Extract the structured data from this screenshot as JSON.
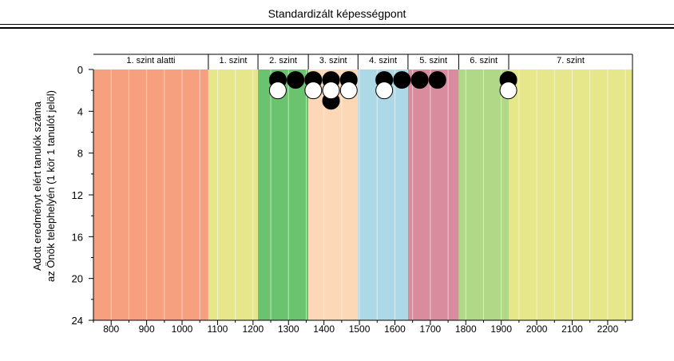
{
  "header": {
    "title": "Standardizált képességpont"
  },
  "chart_data": {
    "type": "scatter",
    "title": "",
    "xlabel": "",
    "ylabel_line1": "Adott eredményt elért tanulók száma",
    "ylabel_line2": "az Önök telephelyén (1 kör 1 tanulót jelöl)",
    "xlim": [
      750,
      2270
    ],
    "ylim": [
      0,
      24
    ],
    "y_inverted": true,
    "grid": "vertical every 50 points",
    "x_ticks": [
      800,
      900,
      1000,
      1100,
      1200,
      1300,
      1400,
      1500,
      1600,
      1700,
      1800,
      1900,
      2000,
      2100,
      2200
    ],
    "y_ticks": [
      0,
      4,
      8,
      12,
      16,
      20,
      24
    ],
    "levels": [
      {
        "label": "1. szint alatti",
        "from": 750,
        "to": 1074,
        "color": "#f6a07f"
      },
      {
        "label": "1. szint",
        "from": 1074,
        "to": 1214,
        "color": "#e6e68a"
      },
      {
        "label": "2. szint",
        "from": 1214,
        "to": 1356,
        "color": "#6cc36f"
      },
      {
        "label": "3. szint",
        "from": 1356,
        "to": 1496,
        "color": "#fcd8b6"
      },
      {
        "label": "4. szint",
        "from": 1496,
        "to": 1637,
        "color": "#add8e6"
      },
      {
        "label": "5. szint",
        "from": 1637,
        "to": 1780,
        "color": "#d88c9d"
      },
      {
        "label": "6. szint",
        "from": 1780,
        "to": 1921,
        "color": "#b0d887"
      },
      {
        "label": "7. szint",
        "from": 1921,
        "to": 2270,
        "color": "#e6e68a"
      }
    ],
    "series": [
      {
        "name": "",
        "fill": "#000000",
        "points": [
          {
            "x": 1270,
            "y": 1
          },
          {
            "x": 1320,
            "y": 1
          },
          {
            "x": 1370,
            "y": 1
          },
          {
            "x": 1420,
            "y": 1
          },
          {
            "x": 1470,
            "y": 1
          },
          {
            "x": 1570,
            "y": 1
          },
          {
            "x": 1620,
            "y": 1
          },
          {
            "x": 1670,
            "y": 1
          },
          {
            "x": 1720,
            "y": 1
          },
          {
            "x": 1920,
            "y": 1
          },
          {
            "x": 1420,
            "y": 3
          }
        ]
      },
      {
        "name": "",
        "fill": "#ffffff",
        "points": [
          {
            "x": 1270,
            "y": 2
          },
          {
            "x": 1370,
            "y": 2
          },
          {
            "x": 1420,
            "y": 2
          },
          {
            "x": 1470,
            "y": 2
          },
          {
            "x": 1570,
            "y": 2
          },
          {
            "x": 1920,
            "y": 2
          }
        ]
      }
    ]
  }
}
